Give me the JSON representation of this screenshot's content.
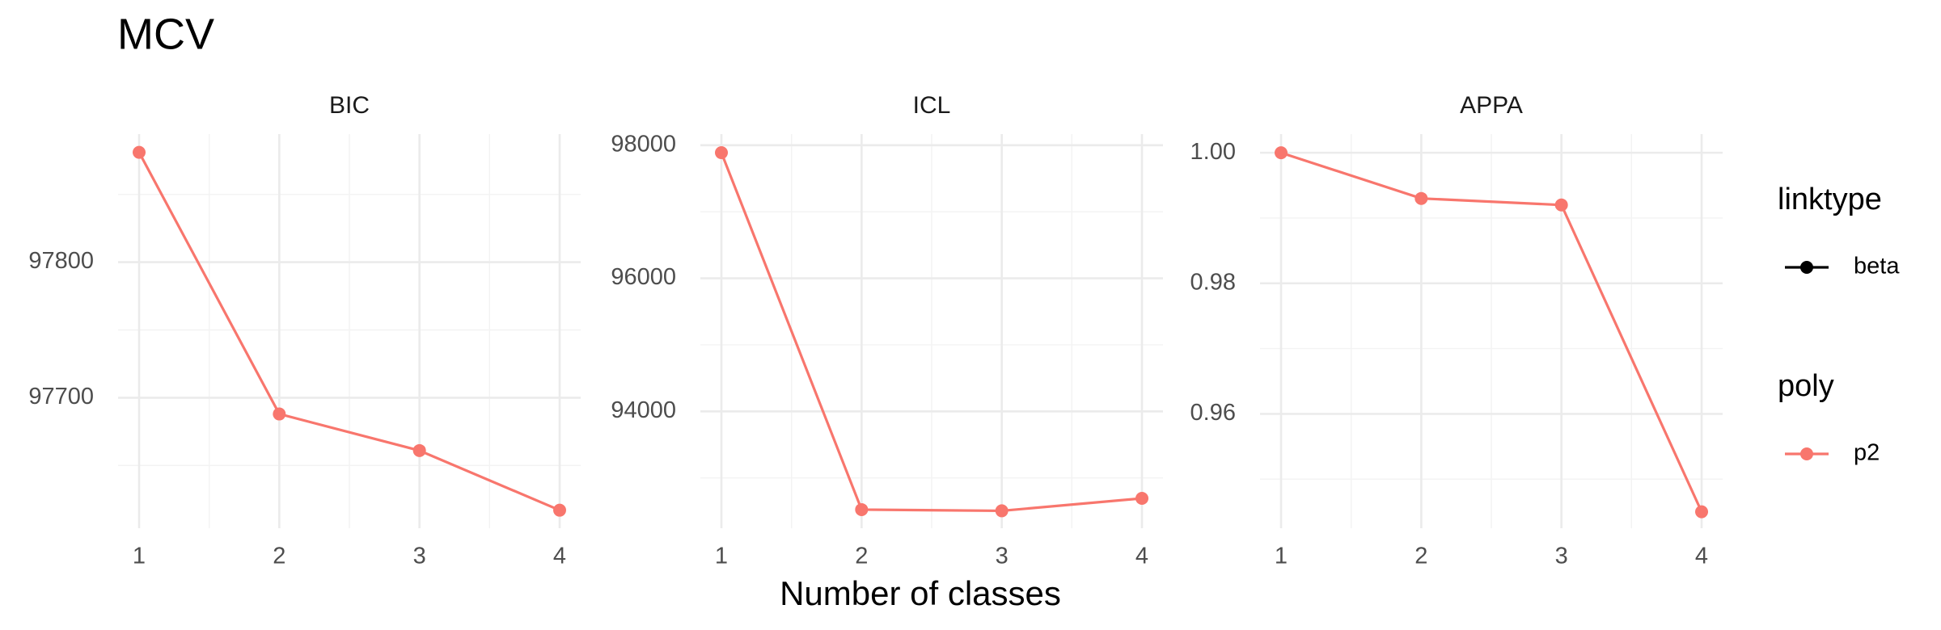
{
  "title": "MCV",
  "x_label": "Number of classes",
  "legend": [
    {
      "title": "linktype",
      "entries": [
        {
          "label": "beta",
          "color": "#000000"
        }
      ]
    },
    {
      "title": "poly",
      "entries": [
        {
          "label": "p2",
          "color": "#F8766D"
        }
      ]
    }
  ],
  "chart_data": [
    {
      "type": "line",
      "title": "BIC",
      "x": [
        1,
        2,
        3,
        4
      ],
      "xlim": [
        0.85,
        4.15
      ],
      "xticks": [
        1,
        2,
        3,
        4
      ],
      "ylim": [
        97603.7,
        97894.5
      ],
      "yticks": [
        97700,
        97800
      ],
      "grid": true,
      "series": [
        {
          "color": "#F8766D",
          "values": [
            97881,
            97688,
            97661,
            97617
          ]
        }
      ]
    },
    {
      "type": "line",
      "title": "ICL",
      "x": [
        1,
        2,
        3,
        4
      ],
      "xlim": [
        0.85,
        4.15
      ],
      "xticks": [
        1,
        2,
        3,
        4
      ],
      "ylim": [
        92243,
        98168
      ],
      "yticks": [
        94000,
        96000,
        98000
      ],
      "grid": true,
      "series": [
        {
          "color": "#F8766D",
          "values": [
            97888,
            92523,
            92505,
            92692
          ]
        }
      ]
    },
    {
      "type": "line",
      "title": "APPA",
      "x": [
        1,
        2,
        3,
        4
      ],
      "xlim": [
        0.85,
        4.15
      ],
      "xticks": [
        1,
        2,
        3,
        4
      ],
      "ylim": [
        0.94248,
        1.00286
      ],
      "yticks": [
        0.96,
        0.98,
        {
          "value": 1,
          "label": "1.00"
        }
      ],
      "grid": true,
      "series": [
        {
          "color": "#F8766D",
          "values": [
            1.0,
            0.993,
            0.992,
            0.945
          ]
        }
      ]
    }
  ]
}
